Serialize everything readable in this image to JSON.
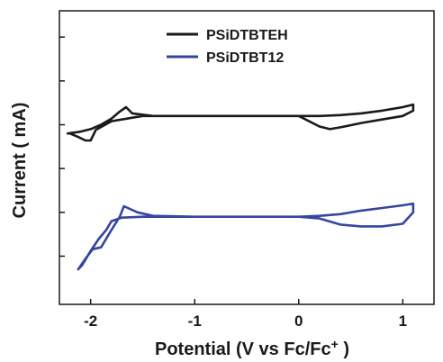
{
  "chart_data": {
    "type": "line",
    "xlabel": "Potential (V vs Fc/Fc",
    "xlabel_sup": "+",
    "xlabel_end": " )",
    "ylabel": "Current ( mA)",
    "xlim": [
      -2.3,
      1.3
    ],
    "ylim": [
      -1.85,
      1.5
    ],
    "x_ticks": [
      -2,
      -1,
      0,
      1
    ],
    "x_tick_labels": [
      "-2",
      "-1",
      "0",
      "1"
    ],
    "y_ticks": [
      -1.3,
      -0.8,
      -0.3,
      0.2,
      0.7,
      1.2
    ],
    "y_tick_labels": [
      "",
      "",
      "",
      "",
      "",
      ""
    ],
    "grid": false,
    "legend_position": "top-center",
    "series": [
      {
        "name": "PSiDTBTEH",
        "color": "#1a1a1a",
        "x": [
          -2.22,
          -2.1,
          -2.0,
          -1.9,
          -1.8,
          -1.72,
          -1.66,
          -1.6,
          -1.4,
          -1.0,
          -0.5,
          0.0,
          0.2,
          0.4,
          0.6,
          0.8,
          1.0,
          1.1,
          1.1,
          1.0,
          0.8,
          0.6,
          0.4,
          0.3,
          0.2,
          0.0,
          -0.5,
          -1.0,
          -1.5,
          -1.8,
          -1.95,
          -2.0,
          -2.05,
          -2.12,
          -2.2,
          -2.22
        ],
        "y": [
          0.1,
          0.12,
          0.15,
          0.2,
          0.27,
          0.35,
          0.4,
          0.33,
          0.3,
          0.3,
          0.3,
          0.3,
          0.3,
          0.31,
          0.33,
          0.36,
          0.4,
          0.43,
          0.36,
          0.3,
          0.26,
          0.22,
          0.17,
          0.15,
          0.18,
          0.3,
          0.3,
          0.3,
          0.3,
          0.24,
          0.14,
          0.02,
          0.02,
          0.06,
          0.1,
          0.1
        ]
      },
      {
        "name": "PSiDTBT12",
        "color": "#3645a0",
        "x": [
          -2.12,
          -2.05,
          -1.98,
          -1.9,
          -1.8,
          -1.72,
          -1.68,
          -1.55,
          -1.4,
          -1.0,
          -0.5,
          0.0,
          0.2,
          0.4,
          0.6,
          0.8,
          1.0,
          1.1,
          1.1,
          1.0,
          0.8,
          0.6,
          0.4,
          0.2,
          0.0,
          -0.5,
          -1.0,
          -1.5,
          -1.7,
          -1.8,
          -1.85,
          -1.92,
          -2.0,
          -2.08,
          -2.12
        ],
        "y": [
          -1.45,
          -1.33,
          -1.22,
          -1.2,
          -1.0,
          -0.85,
          -0.73,
          -0.8,
          -0.84,
          -0.85,
          -0.85,
          -0.85,
          -0.84,
          -0.82,
          -0.78,
          -0.75,
          -0.72,
          -0.7,
          -0.8,
          -0.93,
          -0.96,
          -0.96,
          -0.94,
          -0.87,
          -0.85,
          -0.85,
          -0.85,
          -0.85,
          -0.86,
          -0.9,
          -1.0,
          -1.1,
          -1.24,
          -1.4,
          -1.45
        ]
      }
    ]
  }
}
